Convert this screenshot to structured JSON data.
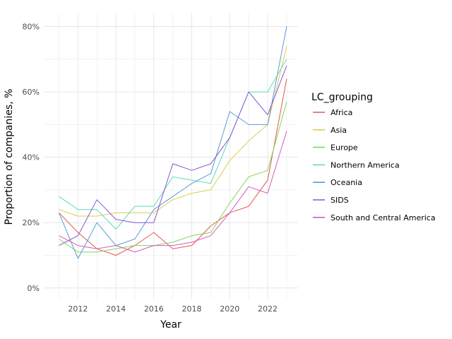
{
  "chart_data": {
    "type": "line",
    "xlabel": "Year",
    "ylabel": "Proportion of companies, %",
    "x": [
      2011,
      2012,
      2013,
      2014,
      2015,
      2016,
      2017,
      2018,
      2019,
      2020,
      2021,
      2022,
      2023
    ],
    "x_ticks": [
      "2012",
      "2014",
      "2016",
      "2018",
      "2020",
      "2022"
    ],
    "y_ticks": [
      "0%",
      "20%",
      "40%",
      "60%",
      "80%"
    ],
    "xlim": [
      2010.2,
      2023.6
    ],
    "ylim": [
      -3.5,
      84
    ],
    "grid": true,
    "legend": {
      "title": "LC_grouping",
      "placement": "right"
    },
    "series": [
      {
        "name": "Africa",
        "color": "#e05a4f",
        "values": [
          23,
          17,
          12,
          10,
          13,
          17,
          12,
          13,
          19,
          23,
          25,
          33,
          64
        ]
      },
      {
        "name": "Asia",
        "color": "#e0cc4f",
        "values": [
          24,
          22,
          22,
          23,
          23,
          23,
          27,
          29,
          30,
          39,
          45,
          50,
          74
        ]
      },
      {
        "name": "Europe",
        "color": "#7fd65b",
        "values": [
          15,
          11,
          11,
          12,
          13,
          13,
          14,
          16,
          17,
          26,
          34,
          36,
          57
        ]
      },
      {
        "name": "Northern America",
        "color": "#5bdcbc",
        "values": [
          28,
          24,
          24,
          18,
          25,
          25,
          34,
          33,
          32,
          46,
          60,
          60,
          70
        ]
      },
      {
        "name": "Oceania",
        "color": "#5b9bd9",
        "values": [
          23,
          9,
          20,
          13,
          15,
          24,
          28,
          32,
          35,
          54,
          50,
          50,
          80
        ]
      },
      {
        "name": "SIDS",
        "color": "#8a55d6",
        "values": [
          13,
          16,
          27,
          21,
          20,
          20,
          38,
          36,
          38,
          46,
          60,
          53,
          68
        ]
      },
      {
        "name": "South and Central America",
        "color": "#d959c2",
        "values": [
          16,
          13,
          12,
          13,
          11,
          13,
          13,
          14,
          16,
          23,
          31,
          29,
          48
        ]
      }
    ]
  }
}
